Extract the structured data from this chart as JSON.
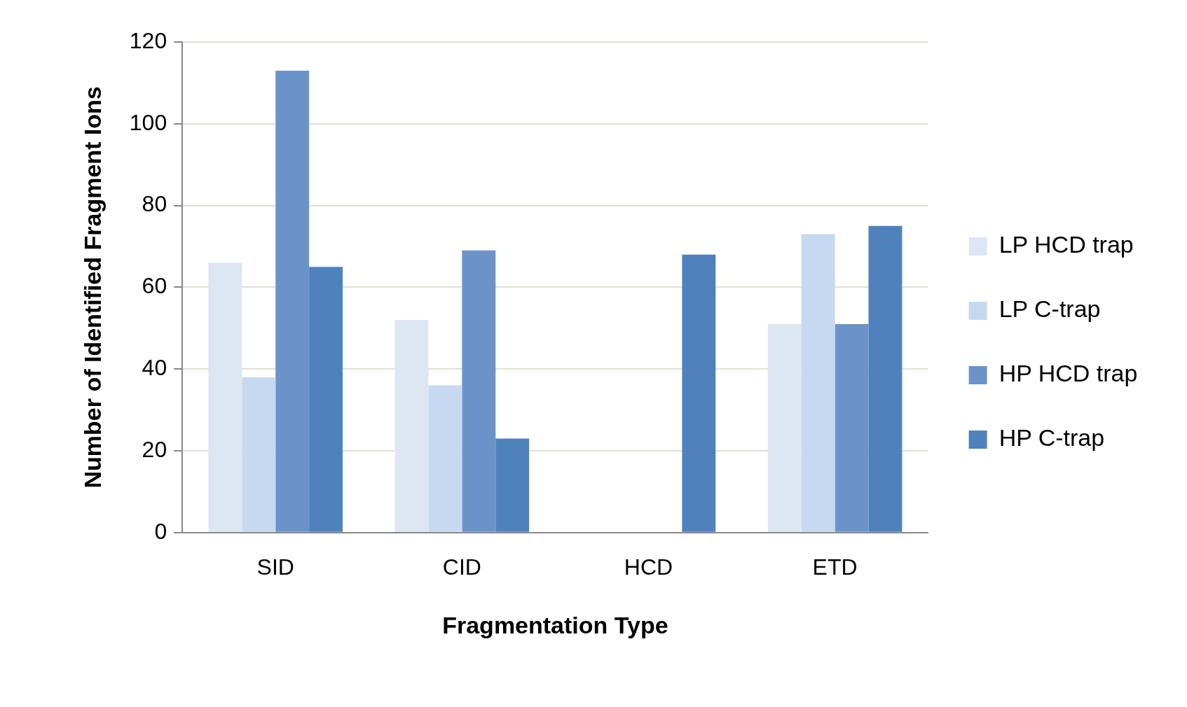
{
  "chart_data": {
    "type": "bar",
    "xlabel": "Fragmentation Type",
    "ylabel": "Number of Identified Fragment Ions",
    "categories": [
      "SID",
      "CID",
      "HCD",
      "ETD"
    ],
    "series": [
      {
        "name": "LP HCD trap",
        "color": "#dde6f3",
        "values": [
          66,
          52,
          null,
          51
        ]
      },
      {
        "name": "LP C-trap",
        "color": "#c6d9f0",
        "values": [
          38,
          36,
          null,
          73
        ]
      },
      {
        "name": "HP HCD trap",
        "color": "#6b93c9",
        "values": [
          113,
          69,
          null,
          51
        ]
      },
      {
        "name": "HP C-trap",
        "color": "#4f81bd",
        "values": [
          65,
          23,
          68,
          75
        ]
      }
    ],
    "ylim": [
      0,
      120
    ],
    "yticks": [
      0,
      20,
      40,
      60,
      80,
      100,
      120
    ],
    "grid": "y",
    "legend": "right"
  }
}
